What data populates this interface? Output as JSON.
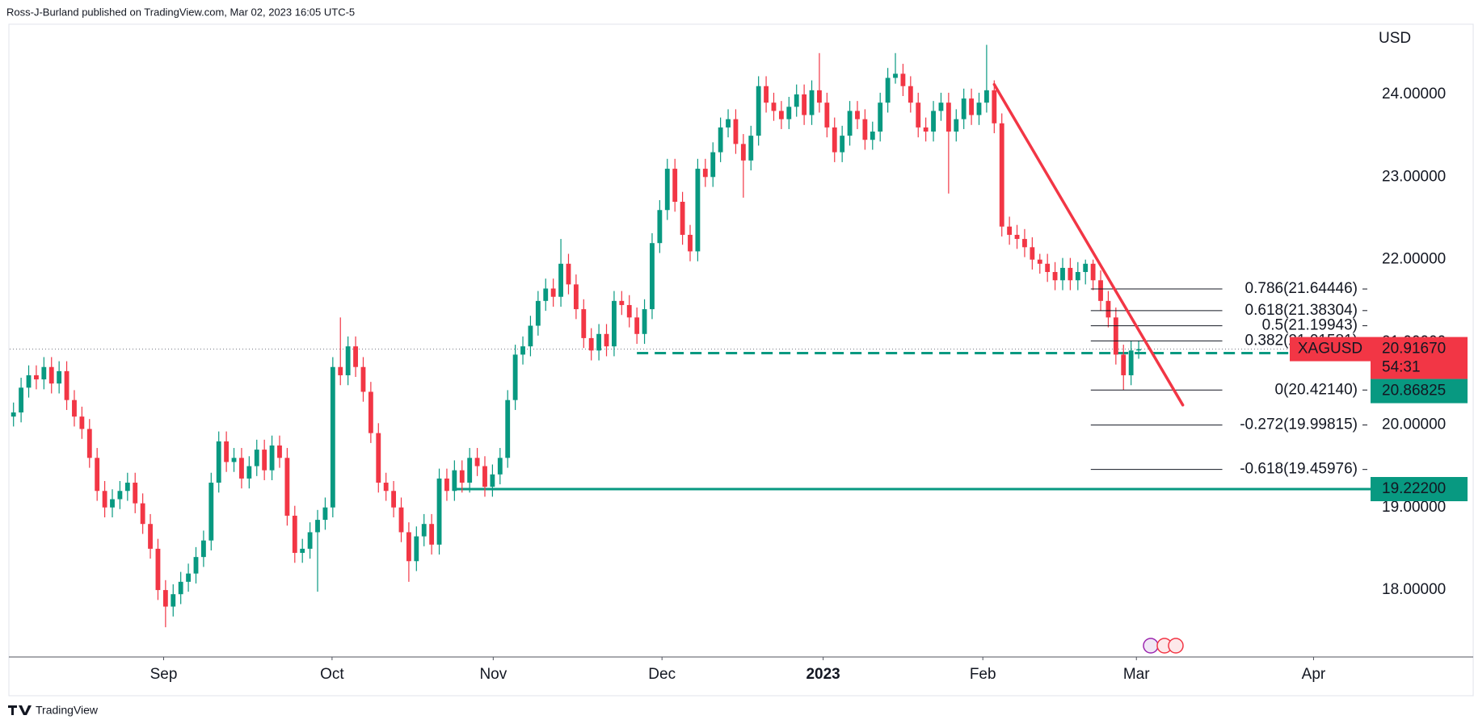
{
  "header": {
    "attribution": "Ross-J-Burland published on TradingView.com, Mar 02, 2023 16:05 UTC-5"
  },
  "chart_data": {
    "type": "candlestick",
    "symbol": "XAGUSD",
    "currency": "USD",
    "up_color": "#089981",
    "down_color": "#f23645",
    "open": [
      20.1,
      20.15,
      20.45,
      20.6,
      20.55,
      20.7,
      20.5,
      20.65,
      20.3,
      20.1,
      19.95,
      19.6,
      19.2,
      19.0,
      19.1,
      19.2,
      19.3,
      19.05,
      18.8,
      18.5,
      18.0,
      17.8,
      17.95,
      18.1,
      18.2,
      18.4,
      18.6,
      19.3,
      19.8,
      19.55,
      19.6,
      19.35,
      19.5,
      19.7,
      19.45,
      19.75,
      19.6,
      18.9,
      18.45,
      18.5,
      18.7,
      18.85,
      19.0,
      20.7,
      20.6,
      20.95,
      20.7,
      20.4,
      19.9,
      19.3,
      19.2,
      19.0,
      18.7,
      18.35,
      18.65,
      18.8,
      18.55,
      19.35,
      19.2,
      19.45,
      19.3,
      19.6,
      19.5,
      19.25,
      19.4,
      19.6,
      20.3,
      20.85,
      20.95,
      21.2,
      21.5,
      21.65,
      21.55,
      21.95,
      21.7,
      21.4,
      21.05,
      20.9,
      21.1,
      20.95,
      21.5,
      21.45,
      21.3,
      21.1,
      21.4,
      22.2,
      22.6,
      23.1,
      22.7,
      22.3,
      22.1,
      23.1,
      23.0,
      23.3,
      23.6,
      23.7,
      23.4,
      23.2,
      23.5,
      24.1,
      23.9,
      23.8,
      23.7,
      23.85,
      24.0,
      23.75,
      24.05,
      23.9,
      23.6,
      23.3,
      23.5,
      23.8,
      23.7,
      23.45,
      23.55,
      23.9,
      24.2,
      24.25,
      24.1,
      23.9,
      23.6,
      23.55,
      23.8,
      23.9,
      23.55,
      23.7,
      23.95,
      23.75,
      23.9,
      24.05,
      23.65,
      22.4,
      22.3,
      22.25,
      22.15,
      22.0,
      21.95,
      21.85,
      21.75,
      21.9,
      21.75,
      21.85,
      21.95,
      21.75,
      21.5,
      21.3,
      20.85,
      20.6,
      20.9
    ],
    "high": [
      20.27,
      20.57,
      20.72,
      20.72,
      20.82,
      20.82,
      20.77,
      20.77,
      20.42,
      20.22,
      20.07,
      19.72,
      19.32,
      19.22,
      19.32,
      19.42,
      19.42,
      19.17,
      18.92,
      18.62,
      18.12,
      18.07,
      18.22,
      18.32,
      18.52,
      18.72,
      19.42,
      19.92,
      19.92,
      19.72,
      19.72,
      19.62,
      19.82,
      19.82,
      19.87,
      19.87,
      19.72,
      19.02,
      18.62,
      18.82,
      18.97,
      19.12,
      20.82,
      21.3,
      21.07,
      21.07,
      20.82,
      20.52,
      20.02,
      19.42,
      19.32,
      19.12,
      18.82,
      18.77,
      18.92,
      18.92,
      19.47,
      19.47,
      19.57,
      19.57,
      19.72,
      19.72,
      19.62,
      19.52,
      19.72,
      20.42,
      20.97,
      21.07,
      21.32,
      21.62,
      21.77,
      21.77,
      22.25,
      22.07,
      21.82,
      21.52,
      21.17,
      21.22,
      21.22,
      21.62,
      21.62,
      21.57,
      21.42,
      21.52,
      22.32,
      22.72,
      23.22,
      23.22,
      22.82,
      22.42,
      23.22,
      23.22,
      23.42,
      23.72,
      23.82,
      23.82,
      23.52,
      23.62,
      24.22,
      24.22,
      24.02,
      23.92,
      23.97,
      24.12,
      24.12,
      24.17,
      24.5,
      24.02,
      23.72,
      23.62,
      23.92,
      23.92,
      23.82,
      23.67,
      24.02,
      24.32,
      24.5,
      24.37,
      24.22,
      24.02,
      23.72,
      23.92,
      24.02,
      24.02,
      23.82,
      24.07,
      24.07,
      24.02,
      24.6,
      24.17,
      23.77,
      22.52,
      22.42,
      22.37,
      22.27,
      22.07,
      22.07,
      21.97,
      22.02,
      22.02,
      21.97,
      22.0,
      22.0,
      21.87,
      21.62,
      21.42,
      20.97,
      21.02,
      21.02
    ],
    "low": [
      19.98,
      20.03,
      20.33,
      20.43,
      20.43,
      20.38,
      20.38,
      20.18,
      19.98,
      19.83,
      19.48,
      19.08,
      18.88,
      18.88,
      18.98,
      19.08,
      18.93,
      18.68,
      18.38,
      17.88,
      17.55,
      17.68,
      17.83,
      17.98,
      18.08,
      18.28,
      18.48,
      19.18,
      19.43,
      19.43,
      19.23,
      19.23,
      19.38,
      19.33,
      19.33,
      19.48,
      18.78,
      18.33,
      18.33,
      18.38,
      17.98,
      18.73,
      18.88,
      20.48,
      20.48,
      20.58,
      20.28,
      19.78,
      19.18,
      19.08,
      18.88,
      18.58,
      18.1,
      18.23,
      18.53,
      18.43,
      18.43,
      19.08,
      19.08,
      19.18,
      19.18,
      19.38,
      19.13,
      19.13,
      19.28,
      19.48,
      20.18,
      20.73,
      20.83,
      21.08,
      21.38,
      21.43,
      21.43,
      21.58,
      21.28,
      20.93,
      20.78,
      20.78,
      20.83,
      20.83,
      21.33,
      21.18,
      20.98,
      20.98,
      21.28,
      22.08,
      22.48,
      22.58,
      22.18,
      21.98,
      21.98,
      22.88,
      22.88,
      23.18,
      23.48,
      23.28,
      22.75,
      23.08,
      23.38,
      23.78,
      23.68,
      23.58,
      23.58,
      23.73,
      23.63,
      23.63,
      23.78,
      23.48,
      23.18,
      23.18,
      23.38,
      23.58,
      23.33,
      23.33,
      23.43,
      23.78,
      24.13,
      23.98,
      23.78,
      23.48,
      23.43,
      23.43,
      23.68,
      22.8,
      23.43,
      23.58,
      23.63,
      23.63,
      23.78,
      23.53,
      22.28,
      22.18,
      22.13,
      22.03,
      21.88,
      21.83,
      21.73,
      21.63,
      21.63,
      21.63,
      21.63,
      21.7,
      21.63,
      21.38,
      21.18,
      20.73,
      20.42,
      20.48,
      20.8
    ],
    "close": [
      20.15,
      20.45,
      20.6,
      20.55,
      20.7,
      20.5,
      20.65,
      20.3,
      20.1,
      19.95,
      19.6,
      19.2,
      19.0,
      19.1,
      19.2,
      19.3,
      19.05,
      18.8,
      18.5,
      18.0,
      17.8,
      17.95,
      18.1,
      18.2,
      18.4,
      18.6,
      19.3,
      19.8,
      19.55,
      19.6,
      19.35,
      19.5,
      19.7,
      19.45,
      19.75,
      19.6,
      18.9,
      18.45,
      18.5,
      18.7,
      18.85,
      19.0,
      20.7,
      20.6,
      20.95,
      20.7,
      20.4,
      19.9,
      19.3,
      19.2,
      19.0,
      18.7,
      18.35,
      18.65,
      18.8,
      18.55,
      19.35,
      19.2,
      19.45,
      19.3,
      19.6,
      19.5,
      19.25,
      19.4,
      19.6,
      20.3,
      20.85,
      20.95,
      21.2,
      21.5,
      21.65,
      21.55,
      21.95,
      21.7,
      21.4,
      21.05,
      20.9,
      21.1,
      20.95,
      21.5,
      21.45,
      21.3,
      21.1,
      21.4,
      22.2,
      22.6,
      23.1,
      22.7,
      22.3,
      22.1,
      23.1,
      23.0,
      23.3,
      23.6,
      23.7,
      23.4,
      23.2,
      23.5,
      24.1,
      23.9,
      23.8,
      23.7,
      23.85,
      24.0,
      23.75,
      24.05,
      23.9,
      23.6,
      23.3,
      23.5,
      23.8,
      23.7,
      23.45,
      23.55,
      23.9,
      24.2,
      24.25,
      24.1,
      23.9,
      23.6,
      23.55,
      23.8,
      23.9,
      23.55,
      23.7,
      23.95,
      23.75,
      23.9,
      24.05,
      23.65,
      22.4,
      22.3,
      22.25,
      22.15,
      22.0,
      21.95,
      21.85,
      21.75,
      21.9,
      21.75,
      21.85,
      21.95,
      21.75,
      21.5,
      21.3,
      20.85,
      20.6,
      20.9,
      20.9167
    ],
    "xlim": [
      -0.5,
      178.5
    ],
    "xticks": [
      {
        "value": 19.75,
        "label": "Sep"
      },
      {
        "value": 41.9,
        "label": "Oct"
      },
      {
        "value": 63.1,
        "label": "Nov"
      },
      {
        "value": 85.3,
        "label": "Dec"
      },
      {
        "value": 106.5,
        "label": "2023",
        "bold": true
      },
      {
        "value": 127.5,
        "label": "Feb"
      },
      {
        "value": 147.7,
        "label": "Mar"
      },
      {
        "value": 171,
        "label": "Apr"
      }
    ],
    "ylim": [
      17.19,
      24.83
    ],
    "yticks": [
      {
        "value": 18,
        "label": "18.00000"
      },
      {
        "value": 19,
        "label": "19.00000"
      },
      {
        "value": 20,
        "label": "20.00000"
      },
      {
        "value": 21,
        "label": "21.00000"
      },
      {
        "value": 22,
        "label": "22.00000"
      },
      {
        "value": 23,
        "label": "23.00000"
      },
      {
        "value": 24,
        "label": "24.00000"
      }
    ],
    "last_price": {
      "value": 20.9167,
      "label": "20.91670",
      "countdown": "54:31",
      "color": "#f23645"
    },
    "fib_x": [
      141.7,
      159
    ],
    "fib_levels": [
      {
        "value": 21.64446,
        "label": "0.786(21.64446)"
      },
      {
        "value": 21.38304,
        "label": "0.618(21.38304)"
      },
      {
        "value": 21.19943,
        "label": "0.5(21.19943)"
      },
      {
        "value": 21.01581,
        "label": "0.382(21.01581)"
      },
      {
        "value": 20.4214,
        "label": "0(20.42140)"
      },
      {
        "value": 19.99815,
        "label": "-0.272(19.99815)"
      },
      {
        "value": 19.45976,
        "label": "-0.618(19.45976)"
      }
    ],
    "horizontal_levels": [
      {
        "value": 20.86825,
        "label": "20.86825",
        "color": "#089981",
        "style": "dashed",
        "x_start": 82
      },
      {
        "value": 19.222,
        "label": "19.22200",
        "color": "#089981",
        "style": "solid",
        "x_start": 57.8
      }
    ],
    "trendline": {
      "color": "#f23645",
      "x": [
        129,
        153.8
      ],
      "y": [
        24.12,
        20.24
      ]
    }
  },
  "footer": {
    "brand": "TradingView"
  }
}
